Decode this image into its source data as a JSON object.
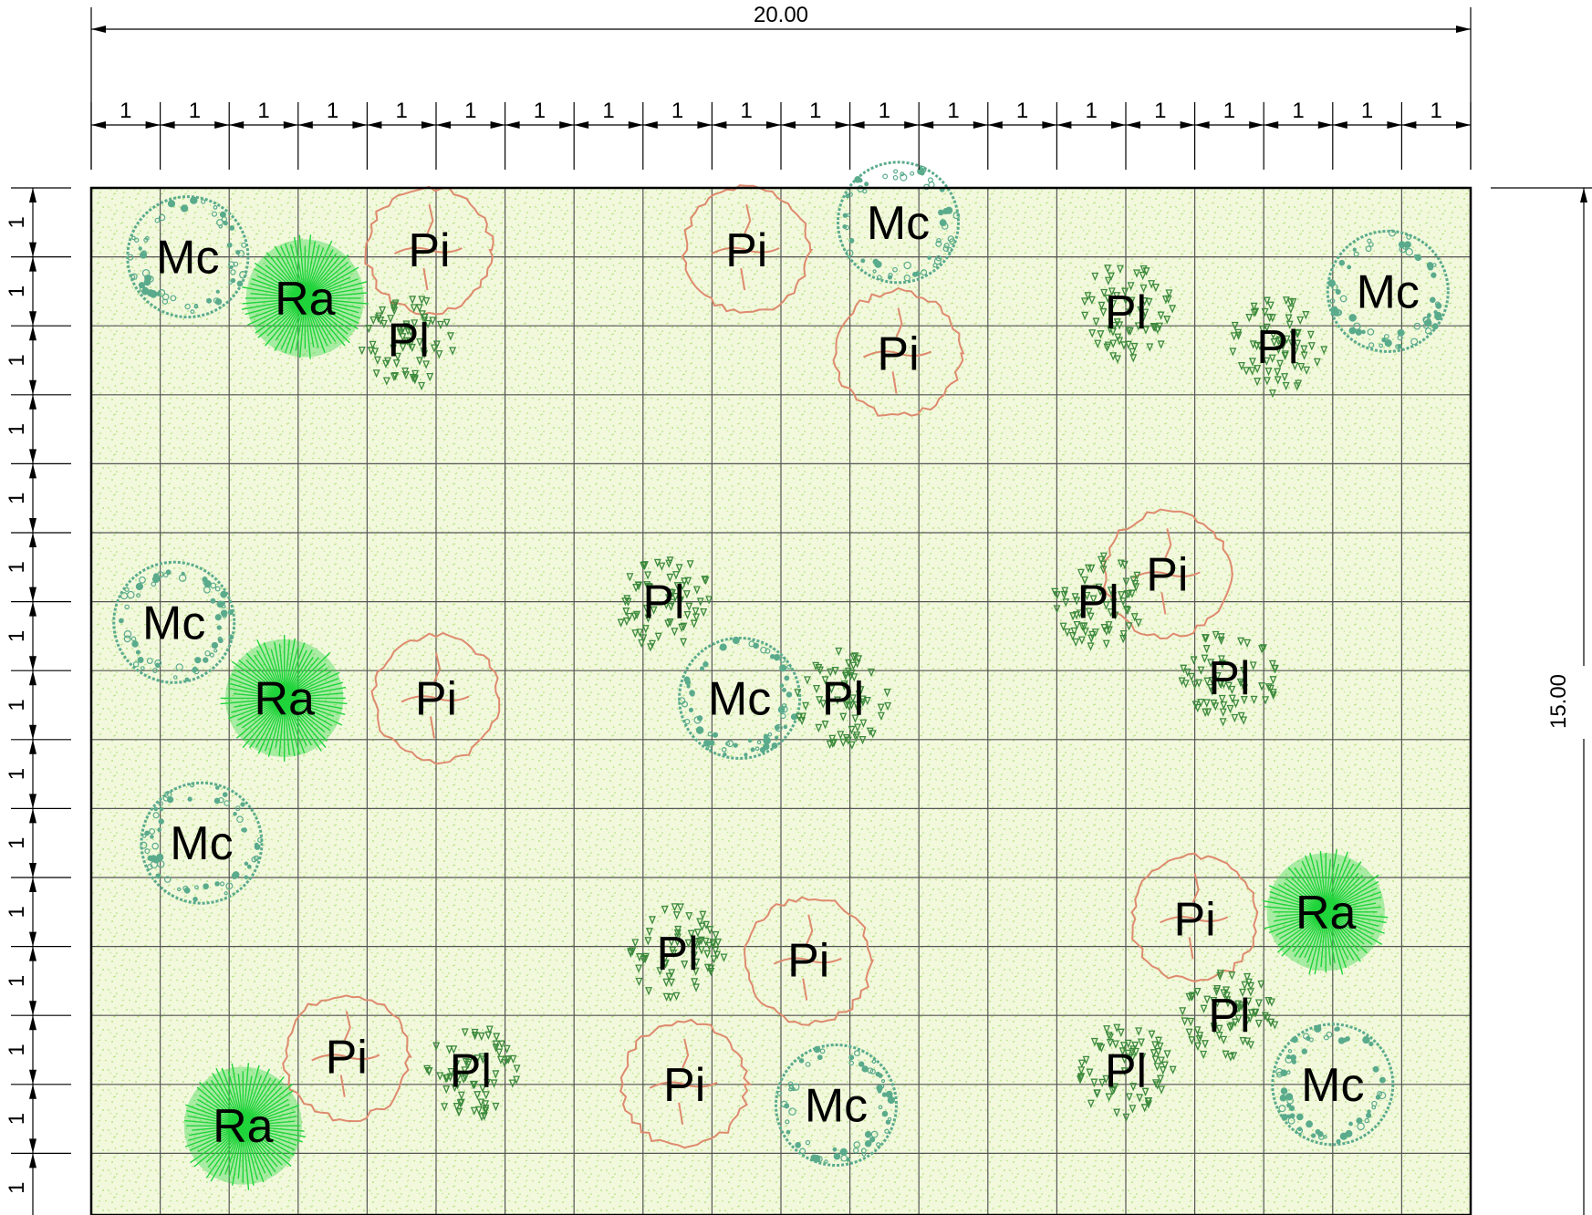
{
  "plan": {
    "width_label": "20.00",
    "height_label": "15.00",
    "cols": 20,
    "rows": 15,
    "unit_label": "1"
  },
  "colors": {
    "ground": "#f1f8dc",
    "ground_speckle": "#bfe58a",
    "grid": "#555555",
    "dim_line": "#000000",
    "Mc": "#5aab8c",
    "Pi": "#de8a6e",
    "Pl": "#3d8a3d",
    "Ra": "#1fd43a"
  },
  "plants": [
    {
      "code": "Mc",
      "x": 1.4,
      "y": 1.0
    },
    {
      "code": "Ra",
      "x": 3.1,
      "y": 1.6
    },
    {
      "code": "Pi",
      "x": 4.9,
      "y": 0.9
    },
    {
      "code": "Pl",
      "x": 4.6,
      "y": 2.2
    },
    {
      "code": "Pi",
      "x": 9.5,
      "y": 0.9
    },
    {
      "code": "Mc",
      "x": 11.7,
      "y": 0.5
    },
    {
      "code": "Pi",
      "x": 11.7,
      "y": 2.4
    },
    {
      "code": "Pl",
      "x": 15.0,
      "y": 1.8
    },
    {
      "code": "Pl",
      "x": 17.2,
      "y": 2.3
    },
    {
      "code": "Mc",
      "x": 18.8,
      "y": 1.5
    },
    {
      "code": "Mc",
      "x": 1.2,
      "y": 6.3
    },
    {
      "code": "Ra",
      "x": 2.8,
      "y": 7.4
    },
    {
      "code": "Pi",
      "x": 5.0,
      "y": 7.4
    },
    {
      "code": "Pl",
      "x": 8.3,
      "y": 6.0
    },
    {
      "code": "Mc",
      "x": 9.4,
      "y": 7.4
    },
    {
      "code": "Pl",
      "x": 10.9,
      "y": 7.4
    },
    {
      "code": "Pi",
      "x": 15.6,
      "y": 5.6
    },
    {
      "code": "Pl",
      "x": 14.6,
      "y": 6.0
    },
    {
      "code": "Pl",
      "x": 16.5,
      "y": 7.1
    },
    {
      "code": "Mc",
      "x": 1.6,
      "y": 9.5
    },
    {
      "code": "Pi",
      "x": 16.0,
      "y": 10.6
    },
    {
      "code": "Ra",
      "x": 17.9,
      "y": 10.5
    },
    {
      "code": "Pl",
      "x": 8.5,
      "y": 11.1
    },
    {
      "code": "Pi",
      "x": 10.4,
      "y": 11.2
    },
    {
      "code": "Pl",
      "x": 16.5,
      "y": 12.0
    },
    {
      "code": "Pi",
      "x": 3.7,
      "y": 12.6
    },
    {
      "code": "Pl",
      "x": 5.5,
      "y": 12.8
    },
    {
      "code": "Pi",
      "x": 8.6,
      "y": 13.0
    },
    {
      "code": "Mc",
      "x": 10.8,
      "y": 13.3
    },
    {
      "code": "Pl",
      "x": 15.0,
      "y": 12.8
    },
    {
      "code": "Mc",
      "x": 18.0,
      "y": 13.0
    },
    {
      "code": "Ra",
      "x": 2.2,
      "y": 13.6
    }
  ]
}
